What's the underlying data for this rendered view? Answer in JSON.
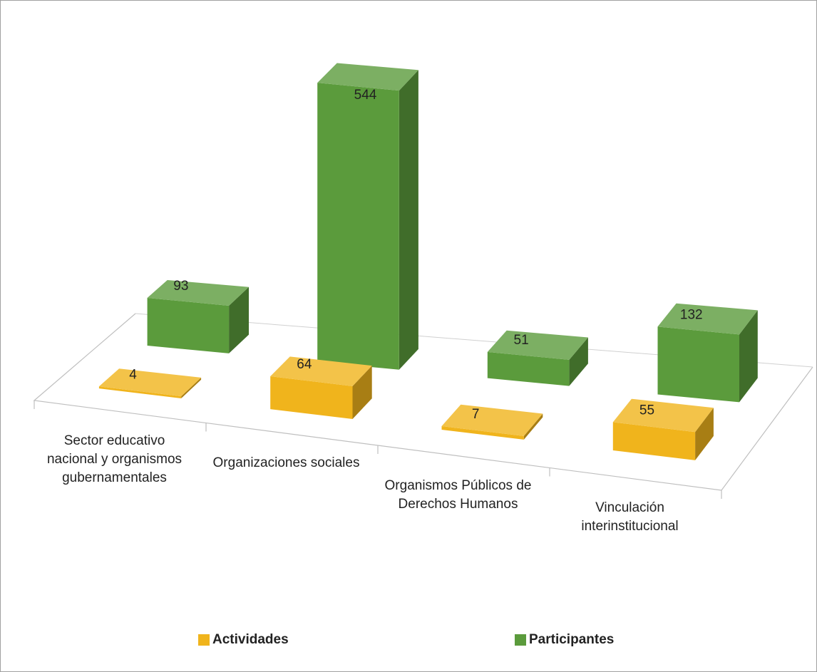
{
  "chart_data": {
    "type": "bar3d",
    "categories": [
      "Sector educativo nacional y organismos gubernamentales",
      "Organizaciones sociales",
      "Organismos Públicos de Derechos Humanos",
      "Vinculación interinstitucional"
    ],
    "series": [
      {
        "name": "Actividades",
        "color": "#f0b41c",
        "values": [
          4,
          64,
          7,
          55
        ]
      },
      {
        "name": "Participantes",
        "color": "#5b9b3c",
        "values": [
          93,
          544,
          51,
          132
        ]
      }
    ]
  }
}
